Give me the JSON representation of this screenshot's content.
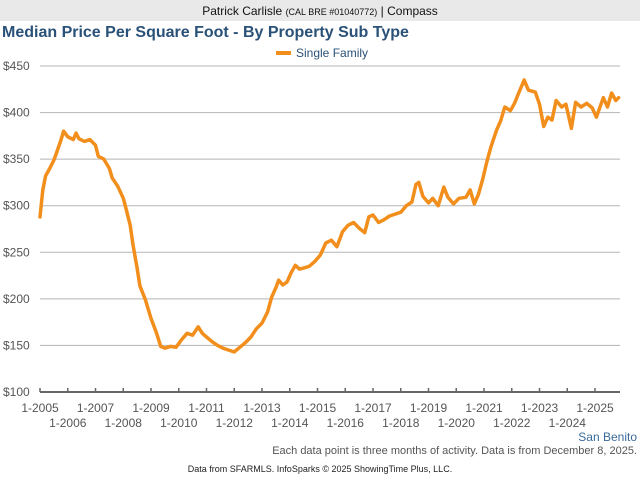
{
  "header": {
    "agent_name": "Patrick Carlisle",
    "license": "(CAL BRE #01040772)",
    "separator": "|",
    "brokerage": "Compass"
  },
  "footer": {
    "region": "San Benito",
    "note": "Each data point is three months of activity. Data is from December 8, 2025.",
    "credit": "Data from SFARMLS. InfoSparks © 2025 ShowingTime Plus, LLC."
  },
  "chart_data": {
    "type": "line",
    "title": "Median Price Per Square Foot - By Property Sub Type",
    "xlabel": "",
    "ylabel": "",
    "ylim": [
      100,
      450
    ],
    "xlim": [
      2005.0,
      2025.9
    ],
    "grid": true,
    "legend_position": "top-center",
    "y_ticks": [
      100,
      150,
      200,
      250,
      300,
      350,
      400,
      450
    ],
    "y_tick_labels": [
      "$100",
      "$150",
      "$200",
      "$250",
      "$300",
      "$350",
      "$400",
      "$450"
    ],
    "x_ticks": [
      2005,
      2006,
      2007,
      2008,
      2009,
      2010,
      2011,
      2012,
      2013,
      2014,
      2015,
      2016,
      2017,
      2018,
      2019,
      2020,
      2021,
      2022,
      2023,
      2024,
      2025
    ],
    "x_tick_labels": [
      "1-2005",
      "1-2006",
      "1-2007",
      "1-2008",
      "1-2009",
      "1-2010",
      "1-2011",
      "1-2012",
      "1-2013",
      "1-2014",
      "1-2015",
      "1-2016",
      "1-2017",
      "1-2018",
      "1-2019",
      "1-2020",
      "1-2021",
      "1-2022",
      "1-2023",
      "1-2024",
      "1-2025"
    ],
    "series": [
      {
        "name": "Single Family",
        "color": "#f28e1c",
        "x": [
          2005.0,
          2005.1,
          2005.2,
          2005.35,
          2005.5,
          2005.6,
          2005.75,
          2005.85,
          2006.0,
          2006.2,
          2006.3,
          2006.4,
          2006.6,
          2006.8,
          2007.0,
          2007.1,
          2007.3,
          2007.5,
          2007.6,
          2007.8,
          2008.0,
          2008.1,
          2008.25,
          2008.35,
          2008.5,
          2008.6,
          2008.8,
          2009.0,
          2009.2,
          2009.35,
          2009.5,
          2009.7,
          2009.9,
          2010.1,
          2010.3,
          2010.5,
          2010.7,
          2010.85,
          2011.0,
          2011.2,
          2011.4,
          2011.6,
          2011.8,
          2012.0,
          2012.2,
          2012.4,
          2012.6,
          2012.8,
          2013.0,
          2013.2,
          2013.35,
          2013.5,
          2013.6,
          2013.75,
          2013.9,
          2014.05,
          2014.2,
          2014.35,
          2014.5,
          2014.7,
          2014.9,
          2015.1,
          2015.3,
          2015.5,
          2015.7,
          2015.9,
          2016.1,
          2016.3,
          2016.5,
          2016.7,
          2016.85,
          2017.0,
          2017.2,
          2017.4,
          2017.6,
          2017.8,
          2018.0,
          2018.2,
          2018.4,
          2018.55,
          2018.65,
          2018.8,
          2019.0,
          2019.15,
          2019.35,
          2019.55,
          2019.7,
          2019.9,
          2020.1,
          2020.35,
          2020.5,
          2020.65,
          2020.8,
          2020.95,
          2021.1,
          2021.25,
          2021.45,
          2021.6,
          2021.75,
          2021.95,
          2022.1,
          2022.25,
          2022.45,
          2022.6,
          2022.85,
          2023.0,
          2023.15,
          2023.3,
          2023.45,
          2023.6,
          2023.8,
          2023.95,
          2024.15,
          2024.3,
          2024.5,
          2024.7,
          2024.9,
          2025.05,
          2025.3,
          2025.45,
          2025.6,
          2025.75,
          2025.85
        ],
        "values": [
          288,
          317,
          332,
          340,
          349,
          357,
          370,
          380,
          374,
          371,
          378,
          372,
          369,
          371,
          365,
          353,
          350,
          340,
          330,
          321,
          308,
          297,
          279,
          258,
          233,
          214,
          199,
          179,
          163,
          149,
          147,
          149,
          148,
          156,
          163,
          161,
          170,
          163,
          159,
          154,
          150,
          147,
          145,
          143,
          148,
          153,
          159,
          168,
          174,
          186,
          202,
          212,
          220,
          215,
          218,
          228,
          236,
          232,
          233,
          235,
          240,
          247,
          260,
          263,
          256,
          272,
          279,
          282,
          276,
          271,
          288,
          290,
          282,
          285,
          289,
          291,
          293,
          300,
          304,
          323,
          325,
          310,
          303,
          308,
          300,
          320,
          309,
          302,
          308,
          309,
          317,
          302,
          312,
          328,
          347,
          363,
          381,
          391,
          406,
          402,
          410,
          421,
          435,
          424,
          422,
          409,
          385,
          395,
          392,
          413,
          406,
          409,
          383,
          411,
          406,
          410,
          405,
          395,
          416,
          406,
          421,
          413,
          416
        ]
      }
    ]
  }
}
